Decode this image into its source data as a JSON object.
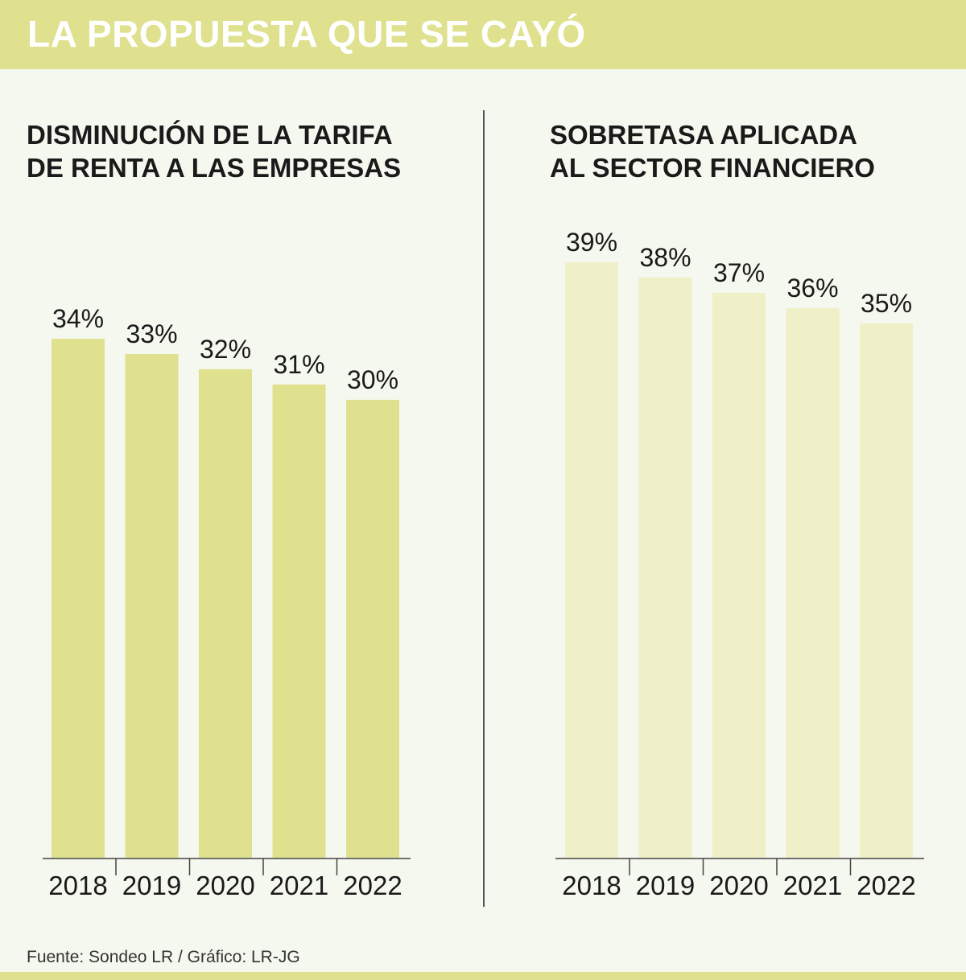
{
  "header": {
    "title": "LA PROPUESTA QUE SE CAYÓ"
  },
  "colors": {
    "header_bg": "#dfe18f",
    "bar_left": "#dfe18f",
    "bar_right": "#eff0c8",
    "background": "#f5f8ee",
    "text": "#1a1a1a"
  },
  "chart_data": [
    {
      "type": "bar",
      "title_lines": [
        "DISMINUCIÓN DE LA TARIFA",
        "DE RENTA A LAS EMPRESAS"
      ],
      "categories": [
        "2018",
        "2019",
        "2020",
        "2021",
        "2022"
      ],
      "values": [
        34,
        33,
        32,
        31,
        30
      ],
      "data_labels": [
        "34%",
        "33%",
        "32%",
        "31%",
        "30%"
      ],
      "ylim": [
        0,
        34
      ],
      "color": "#dfe18f"
    },
    {
      "type": "bar",
      "title_lines": [
        "SOBRETASA APLICADA",
        "AL SECTOR FINANCIERO"
      ],
      "categories": [
        "2018",
        "2019",
        "2020",
        "2021",
        "2022"
      ],
      "values": [
        39,
        38,
        37,
        36,
        35
      ],
      "data_labels": [
        "39%",
        "38%",
        "37%",
        "36%",
        "35%"
      ],
      "ylim": [
        0,
        39
      ],
      "color": "#eff0c8"
    }
  ],
  "footer": {
    "source": "Fuente: Sondeo LR / Gráfico: LR-JG"
  }
}
